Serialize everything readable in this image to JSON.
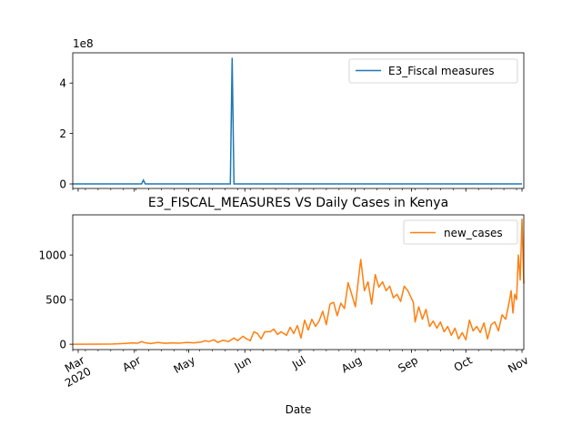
{
  "chart_data": [
    {
      "type": "line",
      "title": "",
      "xlabel": "",
      "ylabel": "",
      "y_scale_label": "1e8",
      "ylim": [
        -18000000,
        520000000
      ],
      "y_ticks": [
        0,
        200000000,
        400000000
      ],
      "y_tick_labels": [
        "0",
        "2",
        "4"
      ],
      "grid": false,
      "legend_position": "top-right",
      "series": [
        {
          "name": "E3_Fiscal measures",
          "color": "#1f77b4",
          "points": [
            [
              "2020-02-27",
              0
            ],
            [
              "2020-04-05",
              0
            ],
            [
              "2020-04-06",
              15000000
            ],
            [
              "2020-04-07",
              0
            ],
            [
              "2020-05-24",
              0
            ],
            [
              "2020-05-25",
              500000000
            ],
            [
              "2020-05-26",
              0
            ],
            [
              "2020-11-01",
              0
            ]
          ]
        }
      ]
    },
    {
      "type": "line",
      "title": "E3_FISCAL_MEASURES VS Daily Cases in Kenya",
      "xlabel": "Date",
      "ylabel": "",
      "ylim": [
        -60,
        1450
      ],
      "y_ticks": [
        0,
        500,
        1000
      ],
      "y_tick_labels": [
        "0",
        "500",
        "1000"
      ],
      "x_tick_labels": [
        "Mar\n2020",
        "Apr",
        "May",
        "Jun",
        "Jul",
        "Aug",
        "Sep",
        "Oct",
        "Nov"
      ],
      "grid": false,
      "legend_position": "top-right",
      "series": [
        {
          "name": "new_cases",
          "color": "#ff7f0e",
          "points": [
            [
              "2020-02-27",
              0
            ],
            [
              "2020-03-13",
              1
            ],
            [
              "2020-03-20",
              3
            ],
            [
              "2020-03-27",
              9
            ],
            [
              "2020-03-31",
              15
            ],
            [
              "2020-04-03",
              12
            ],
            [
              "2020-04-05",
              30
            ],
            [
              "2020-04-07",
              16
            ],
            [
              "2020-04-10",
              8
            ],
            [
              "2020-04-14",
              20
            ],
            [
              "2020-04-18",
              10
            ],
            [
              "2020-04-22",
              15
            ],
            [
              "2020-04-26",
              12
            ],
            [
              "2020-04-30",
              20
            ],
            [
              "2020-05-04",
              15
            ],
            [
              "2020-05-08",
              25
            ],
            [
              "2020-05-10",
              40
            ],
            [
              "2020-05-12",
              30
            ],
            [
              "2020-05-15",
              50
            ],
            [
              "2020-05-17",
              20
            ],
            [
              "2020-05-20",
              45
            ],
            [
              "2020-05-23",
              30
            ],
            [
              "2020-05-26",
              70
            ],
            [
              "2020-05-28",
              40
            ],
            [
              "2020-05-31",
              90
            ],
            [
              "2020-06-02",
              60
            ],
            [
              "2020-06-04",
              40
            ],
            [
              "2020-06-06",
              140
            ],
            [
              "2020-06-08",
              120
            ],
            [
              "2020-06-10",
              60
            ],
            [
              "2020-06-12",
              140
            ],
            [
              "2020-06-15",
              140
            ],
            [
              "2020-06-17",
              170
            ],
            [
              "2020-06-19",
              110
            ],
            [
              "2020-06-21",
              140
            ],
            [
              "2020-06-24",
              100
            ],
            [
              "2020-06-26",
              190
            ],
            [
              "2020-06-28",
              120
            ],
            [
              "2020-06-30",
              210
            ],
            [
              "2020-07-02",
              70
            ],
            [
              "2020-07-04",
              270
            ],
            [
              "2020-07-06",
              160
            ],
            [
              "2020-07-08",
              280
            ],
            [
              "2020-07-10",
              200
            ],
            [
              "2020-07-12",
              260
            ],
            [
              "2020-07-14",
              370
            ],
            [
              "2020-07-16",
              220
            ],
            [
              "2020-07-18",
              450
            ],
            [
              "2020-07-20",
              470
            ],
            [
              "2020-07-22",
              320
            ],
            [
              "2020-07-24",
              460
            ],
            [
              "2020-07-26",
              400
            ],
            [
              "2020-07-28",
              690
            ],
            [
              "2020-07-30",
              560
            ],
            [
              "2020-08-01",
              420
            ],
            [
              "2020-08-03",
              780
            ],
            [
              "2020-08-04",
              950
            ],
            [
              "2020-08-06",
              600
            ],
            [
              "2020-08-08",
              700
            ],
            [
              "2020-08-10",
              450
            ],
            [
              "2020-08-12",
              780
            ],
            [
              "2020-08-14",
              640
            ],
            [
              "2020-08-16",
              700
            ],
            [
              "2020-08-18",
              600
            ],
            [
              "2020-08-20",
              650
            ],
            [
              "2020-08-22",
              520
            ],
            [
              "2020-08-24",
              560
            ],
            [
              "2020-08-26",
              480
            ],
            [
              "2020-08-28",
              650
            ],
            [
              "2020-08-30",
              600
            ],
            [
              "2020-09-02",
              470
            ],
            [
              "2020-09-03",
              250
            ],
            [
              "2020-09-05",
              420
            ],
            [
              "2020-09-07",
              280
            ],
            [
              "2020-09-09",
              390
            ],
            [
              "2020-09-11",
              200
            ],
            [
              "2020-09-13",
              260
            ],
            [
              "2020-09-15",
              180
            ],
            [
              "2020-09-17",
              250
            ],
            [
              "2020-09-19",
              140
            ],
            [
              "2020-09-21",
              200
            ],
            [
              "2020-09-23",
              100
            ],
            [
              "2020-09-25",
              180
            ],
            [
              "2020-09-27",
              60
            ],
            [
              "2020-09-29",
              130
            ],
            [
              "2020-10-01",
              50
            ],
            [
              "2020-10-03",
              270
            ],
            [
              "2020-10-05",
              150
            ],
            [
              "2020-10-07",
              200
            ],
            [
              "2020-10-09",
              130
            ],
            [
              "2020-10-11",
              240
            ],
            [
              "2020-10-13",
              60
            ],
            [
              "2020-10-15",
              220
            ],
            [
              "2020-10-17",
              250
            ],
            [
              "2020-10-19",
              150
            ],
            [
              "2020-10-21",
              330
            ],
            [
              "2020-10-23",
              280
            ],
            [
              "2020-10-25",
              480
            ],
            [
              "2020-10-26",
              600
            ],
            [
              "2020-10-27",
              350
            ],
            [
              "2020-10-28",
              560
            ],
            [
              "2020-10-29",
              500
            ],
            [
              "2020-10-30",
              1000
            ],
            [
              "2020-10-31",
              720
            ],
            [
              "2020-11-01",
              1400
            ],
            [
              "2020-11-02",
              680
            ]
          ]
        }
      ]
    }
  ]
}
